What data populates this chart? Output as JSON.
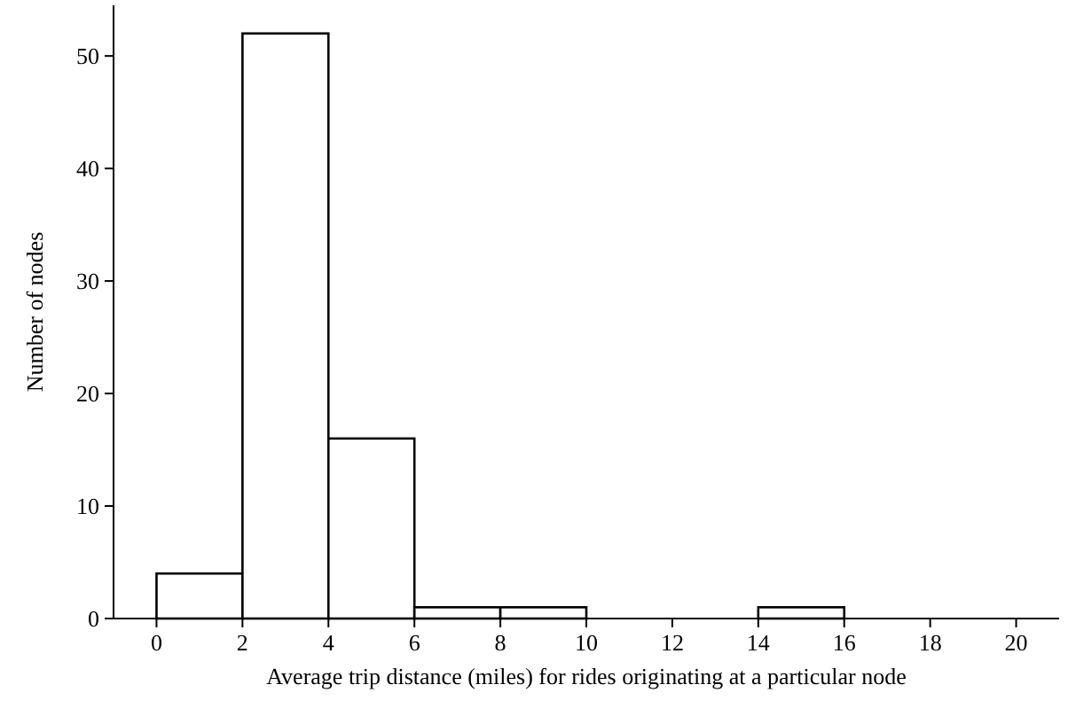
{
  "chart_data": {
    "type": "histogram",
    "xlabel": "Average trip distance (miles) for rides originating at a particular node",
    "ylabel": "Number of nodes",
    "bins": [
      0,
      2,
      4,
      6,
      8,
      10,
      12,
      14,
      16,
      18,
      20
    ],
    "values": [
      4,
      52,
      16,
      1,
      1,
      0,
      0,
      1,
      0,
      0
    ],
    "color": "#ffffff",
    "xlim": [
      -1,
      21
    ],
    "xticks": [
      0,
      2,
      4,
      6,
      8,
      10,
      12,
      14,
      16,
      18,
      20
    ],
    "ylim": [
      0,
      54.5
    ],
    "yticks": [
      0,
      10,
      20,
      30,
      40,
      50
    ],
    "grid": false
  }
}
